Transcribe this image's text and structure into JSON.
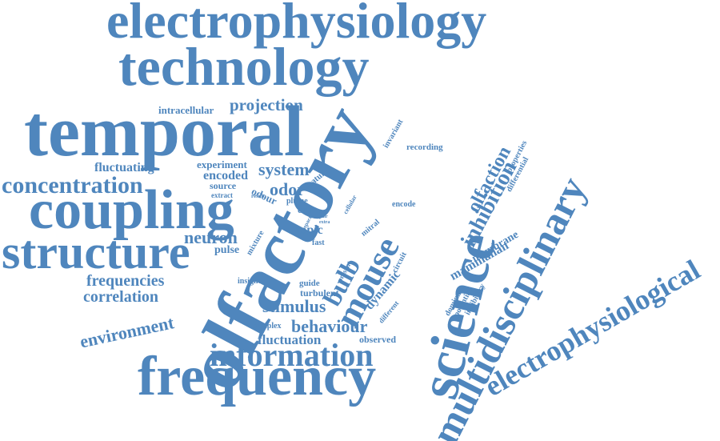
{
  "theme": {
    "word_color": "#4f86bd",
    "background": "#ffffff"
  },
  "words": {
    "electrophysiology": "electrophysiology",
    "technology": "technology",
    "temporal": "temporal",
    "olfactory": "olfactory",
    "science": "science",
    "multidisciplinary": "multidisciplinary",
    "electrophysiological": "electrophysiological",
    "frequency": "frequency",
    "coupling": "coupling",
    "structure": "structure",
    "concentration": "concentration",
    "information": "information",
    "mouse": "mouse",
    "bulb": "bulb",
    "inhibition": "inhibition",
    "olfaction": "olfaction",
    "projection": "projection",
    "intracellular": "intracellular",
    "fluctuating": "fluctuating",
    "experiment": "experiment",
    "encoded": "encoded",
    "system": "system",
    "odour": "odour",
    "odor": "odor",
    "source": "source",
    "extract": "extract",
    "result": "result",
    "plume": "plume",
    "cell": "cell",
    "feature": "feature",
    "invariant": "invariant",
    "recording": "recording",
    "properties": "properties",
    "differential": "differential",
    "encode": "encode",
    "cellular": "cellular",
    "space": "space",
    "pair": "pair",
    "extra": "extra",
    "mitral": "mitral",
    "topic": "topic",
    "fast": "fast",
    "circuit": "circuit",
    "neuron": "neuron",
    "pulse": "pulse",
    "mixture": "mixture",
    "present": "present",
    "dynamic": "dynamic",
    "different": "different",
    "guide": "guide",
    "turbulent": "turbulent",
    "insight": "insight",
    "stimulus": "stimulus",
    "frequencies": "frequencies",
    "correlation": "correlation",
    "environment": "environment",
    "behaviour": "behaviour",
    "complex": "complex",
    "fluctuation": "fluctuation",
    "observed": "observed",
    "membrane": "membrane",
    "mammalian": "mammalian",
    "dominant": "dominant",
    "potential": "potential",
    "inhibitory": "inhibitory"
  }
}
